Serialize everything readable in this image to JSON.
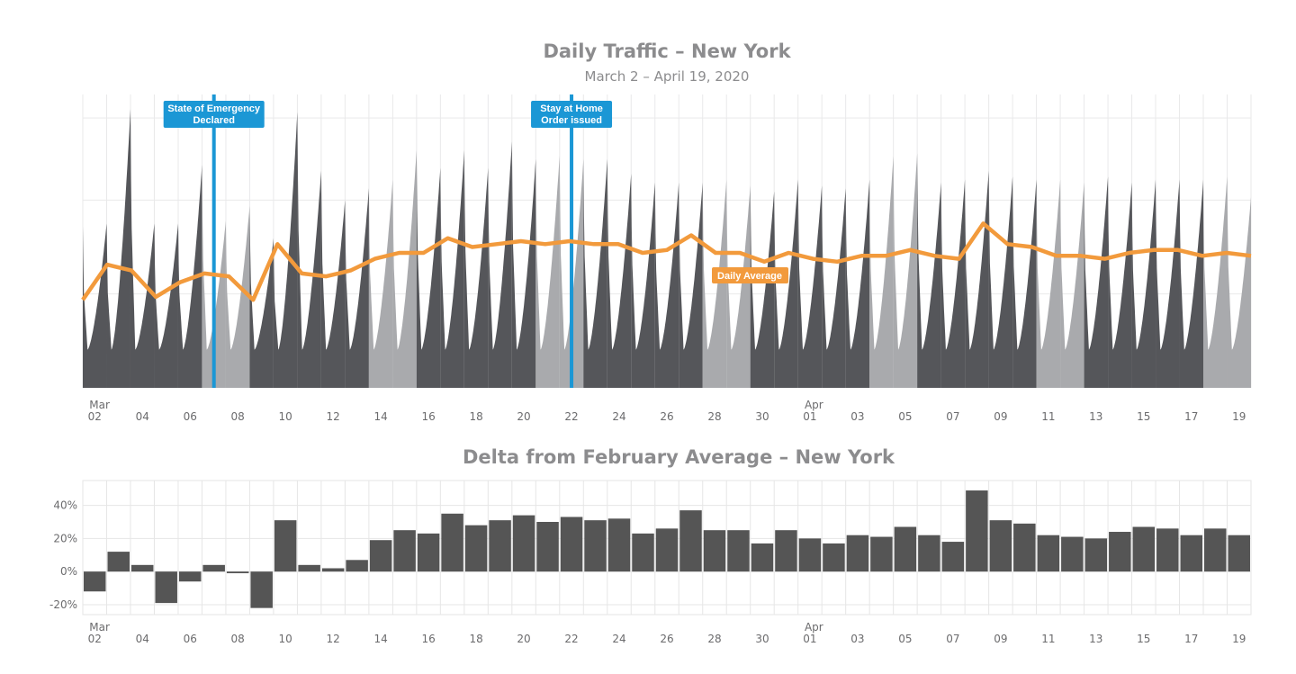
{
  "chart_data": [
    {
      "type": "area",
      "title": "Daily Traffic – New York",
      "subtitle": "March 2 – April 19, 2020",
      "categories": [
        "Mar 02",
        "Mar 03",
        "Mar 04",
        "Mar 05",
        "Mar 06",
        "Mar 07",
        "Mar 08",
        "Mar 09",
        "Mar 10",
        "Mar 11",
        "Mar 12",
        "Mar 13",
        "Mar 14",
        "Mar 15",
        "Mar 16",
        "Mar 17",
        "Mar 18",
        "Mar 19",
        "Mar 20",
        "Mar 21",
        "Mar 22",
        "Mar 23",
        "Mar 24",
        "Mar 25",
        "Mar 26",
        "Mar 27",
        "Mar 28",
        "Mar 29",
        "Mar 30",
        "Mar 31",
        "Apr 01",
        "Apr 02",
        "Apr 03",
        "Apr 04",
        "Apr 05",
        "Apr 06",
        "Apr 07",
        "Apr 08",
        "Apr 09",
        "Apr 10",
        "Apr 11",
        "Apr 12",
        "Apr 13",
        "Apr 14",
        "Apr 15",
        "Apr 16",
        "Apr 17",
        "Apr 18",
        "Apr 19"
      ],
      "x_tick_labels": [
        "02",
        "04",
        "06",
        "08",
        "10",
        "12",
        "14",
        "16",
        "18",
        "20",
        "22",
        "24",
        "26",
        "28",
        "30",
        "01",
        "03",
        "05",
        "07",
        "09",
        "11",
        "13",
        "15",
        "17",
        "19"
      ],
      "month_labels": [
        {
          "label": "Mar",
          "tick": "02"
        },
        {
          "label": "Apr",
          "tick": "01"
        }
      ],
      "weekend_days": [
        "Mar 07",
        "Mar 08",
        "Mar 14",
        "Mar 15",
        "Mar 21",
        "Mar 22",
        "Mar 28",
        "Mar 29",
        "Apr 04",
        "Apr 05",
        "Apr 11",
        "Apr 12",
        "Apr 18",
        "Apr 19"
      ],
      "y_unit": "relative traffic index (unlabeled axis)",
      "ylim": [
        0,
        100
      ],
      "night_minimum": 13,
      "daily_peak": [
        56,
        95,
        56,
        56,
        76,
        57,
        62,
        51,
        94,
        74,
        64,
        68,
        71,
        81,
        75,
        81,
        75,
        84,
        78,
        79,
        78,
        78,
        73,
        70,
        70,
        70,
        71,
        69,
        67,
        71,
        69,
        68,
        71,
        79,
        80,
        70,
        71,
        74,
        72,
        71,
        71,
        70,
        72,
        70,
        71,
        71,
        71,
        72,
        65
      ],
      "daily_average": {
        "name": "Daily Average",
        "values": [
          30,
          42,
          40,
          31,
          36,
          39,
          38,
          30,
          49,
          39,
          38,
          40,
          44,
          46,
          46,
          51,
          48,
          49,
          50,
          49,
          50,
          49,
          49,
          46,
          47,
          52,
          46,
          46,
          43,
          46,
          44,
          43,
          45,
          45,
          47,
          45,
          44,
          56,
          49,
          48,
          45,
          45,
          44,
          46,
          47,
          47,
          45,
          46,
          45
        ]
      },
      "annotations": [
        {
          "date": "Mar 07",
          "lines": [
            "State of Emergency",
            "Declared"
          ]
        },
        {
          "date": "Mar 22",
          "lines": [
            "Stay at Home",
            "Order issued"
          ]
        }
      ],
      "grid": true,
      "colors": {
        "weekday": "#55565a",
        "weekend": "#a9aaad",
        "average": "#f29a3c",
        "annotation": "#1b97d5",
        "grid": "#e9e9ea"
      }
    },
    {
      "type": "bar",
      "title": "Delta from February Average – New York",
      "categories": [
        "Mar 02",
        "Mar 03",
        "Mar 04",
        "Mar 05",
        "Mar 06",
        "Mar 07",
        "Mar 08",
        "Mar 09",
        "Mar 10",
        "Mar 11",
        "Mar 12",
        "Mar 13",
        "Mar 14",
        "Mar 15",
        "Mar 16",
        "Mar 17",
        "Mar 18",
        "Mar 19",
        "Mar 20",
        "Mar 21",
        "Mar 22",
        "Mar 23",
        "Mar 24",
        "Mar 25",
        "Mar 26",
        "Mar 27",
        "Mar 28",
        "Mar 29",
        "Mar 30",
        "Mar 31",
        "Apr 01",
        "Apr 02",
        "Apr 03",
        "Apr 04",
        "Apr 05",
        "Apr 06",
        "Apr 07",
        "Apr 08",
        "Apr 09",
        "Apr 10",
        "Apr 11",
        "Apr 12",
        "Apr 13",
        "Apr 14",
        "Apr 15",
        "Apr 16",
        "Apr 17",
        "Apr 18",
        "Apr 19"
      ],
      "values": [
        -12,
        12,
        4,
        -19,
        -6,
        4,
        -1,
        -22,
        31,
        4,
        2,
        7,
        19,
        25,
        23,
        35,
        28,
        31,
        34,
        30,
        33,
        31,
        32,
        23,
        26,
        37,
        25,
        25,
        17,
        25,
        20,
        17,
        22,
        21,
        27,
        22,
        18,
        49,
        31,
        29,
        22,
        21,
        20,
        24,
        27,
        26,
        22,
        26,
        22
      ],
      "y_ticks": [
        {
          "value": 40,
          "label": "40%"
        },
        {
          "value": 20,
          "label": "20%"
        },
        {
          "value": 0,
          "label": "0%"
        },
        {
          "value": -20,
          "label": "-20%"
        }
      ],
      "ylim": [
        -26,
        55
      ],
      "x_tick_labels": [
        "02",
        "04",
        "06",
        "08",
        "10",
        "12",
        "14",
        "16",
        "18",
        "20",
        "22",
        "24",
        "26",
        "28",
        "30",
        "01",
        "03",
        "05",
        "07",
        "09",
        "11",
        "13",
        "15",
        "17",
        "19"
      ],
      "month_labels": [
        {
          "label": "Mar",
          "tick": "02"
        },
        {
          "label": "Apr",
          "tick": "01"
        }
      ],
      "grid": true,
      "colors": {
        "bar": "#555555",
        "grid": "#e6e6e6"
      }
    }
  ]
}
